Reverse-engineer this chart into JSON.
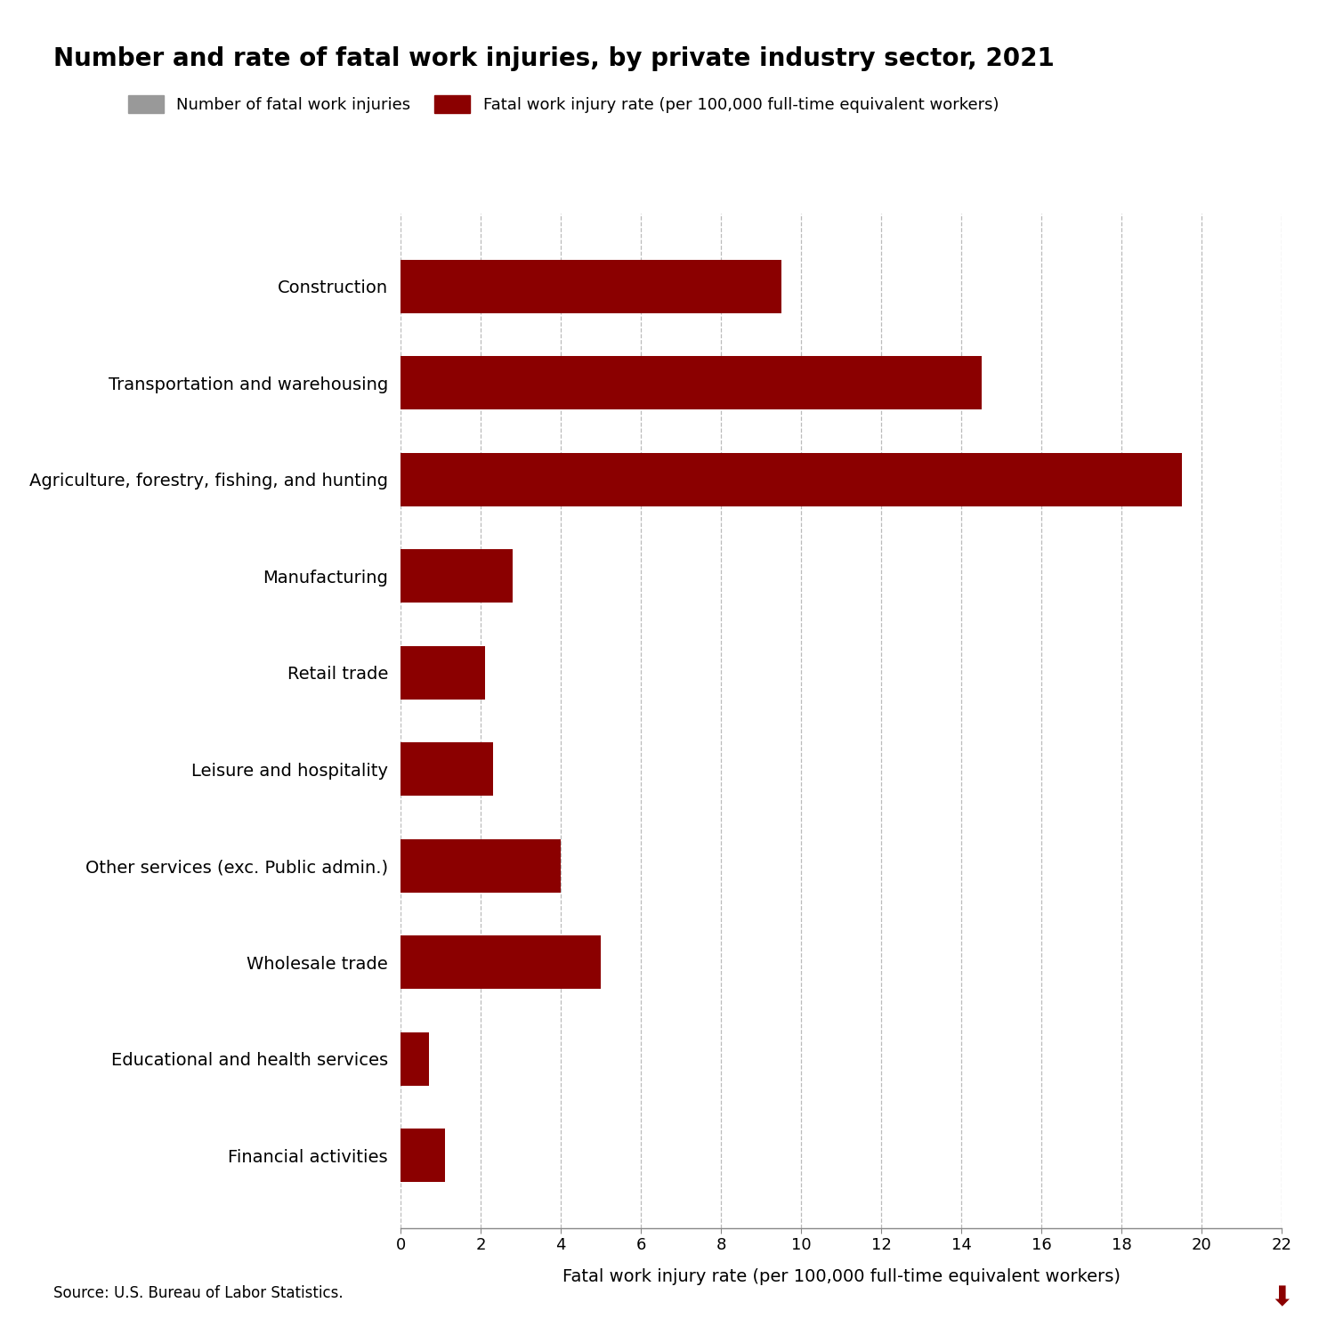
{
  "title": "Number and rate of fatal work injuries, by private industry sector, 2021",
  "categories": [
    "Construction",
    "Transportation and warehousing",
    "Agriculture, forestry, fishing, and hunting",
    "Manufacturing",
    "Retail trade",
    "Leisure and hospitality",
    "Other services (exc. Public admin.)",
    "Wholesale trade",
    "Educational and health services",
    "Financial activities"
  ],
  "rate_values": [
    9.5,
    14.5,
    19.5,
    2.8,
    2.1,
    2.3,
    4.0,
    5.0,
    0.7,
    1.1
  ],
  "bar_color": "#8B0000",
  "legend_gray_color": "#999999",
  "legend_label_gray": "Number of fatal work injuries",
  "legend_label_red": "Fatal work injury rate (per 100,000 full-time equivalent workers)",
  "xlabel": "Fatal work injury rate (per 100,000 full-time equivalent workers)",
  "xlim": [
    0,
    22
  ],
  "xticks": [
    0,
    2,
    4,
    6,
    8,
    10,
    12,
    14,
    16,
    18,
    20,
    22
  ],
  "source": "Source: U.S. Bureau of Labor Statistics.",
  "title_fontsize": 20,
  "label_fontsize": 14,
  "tick_fontsize": 13,
  "legend_fontsize": 13,
  "source_fontsize": 12,
  "background_color": "#ffffff",
  "grid_color": "#bbbbbb",
  "bar_height": 0.55
}
